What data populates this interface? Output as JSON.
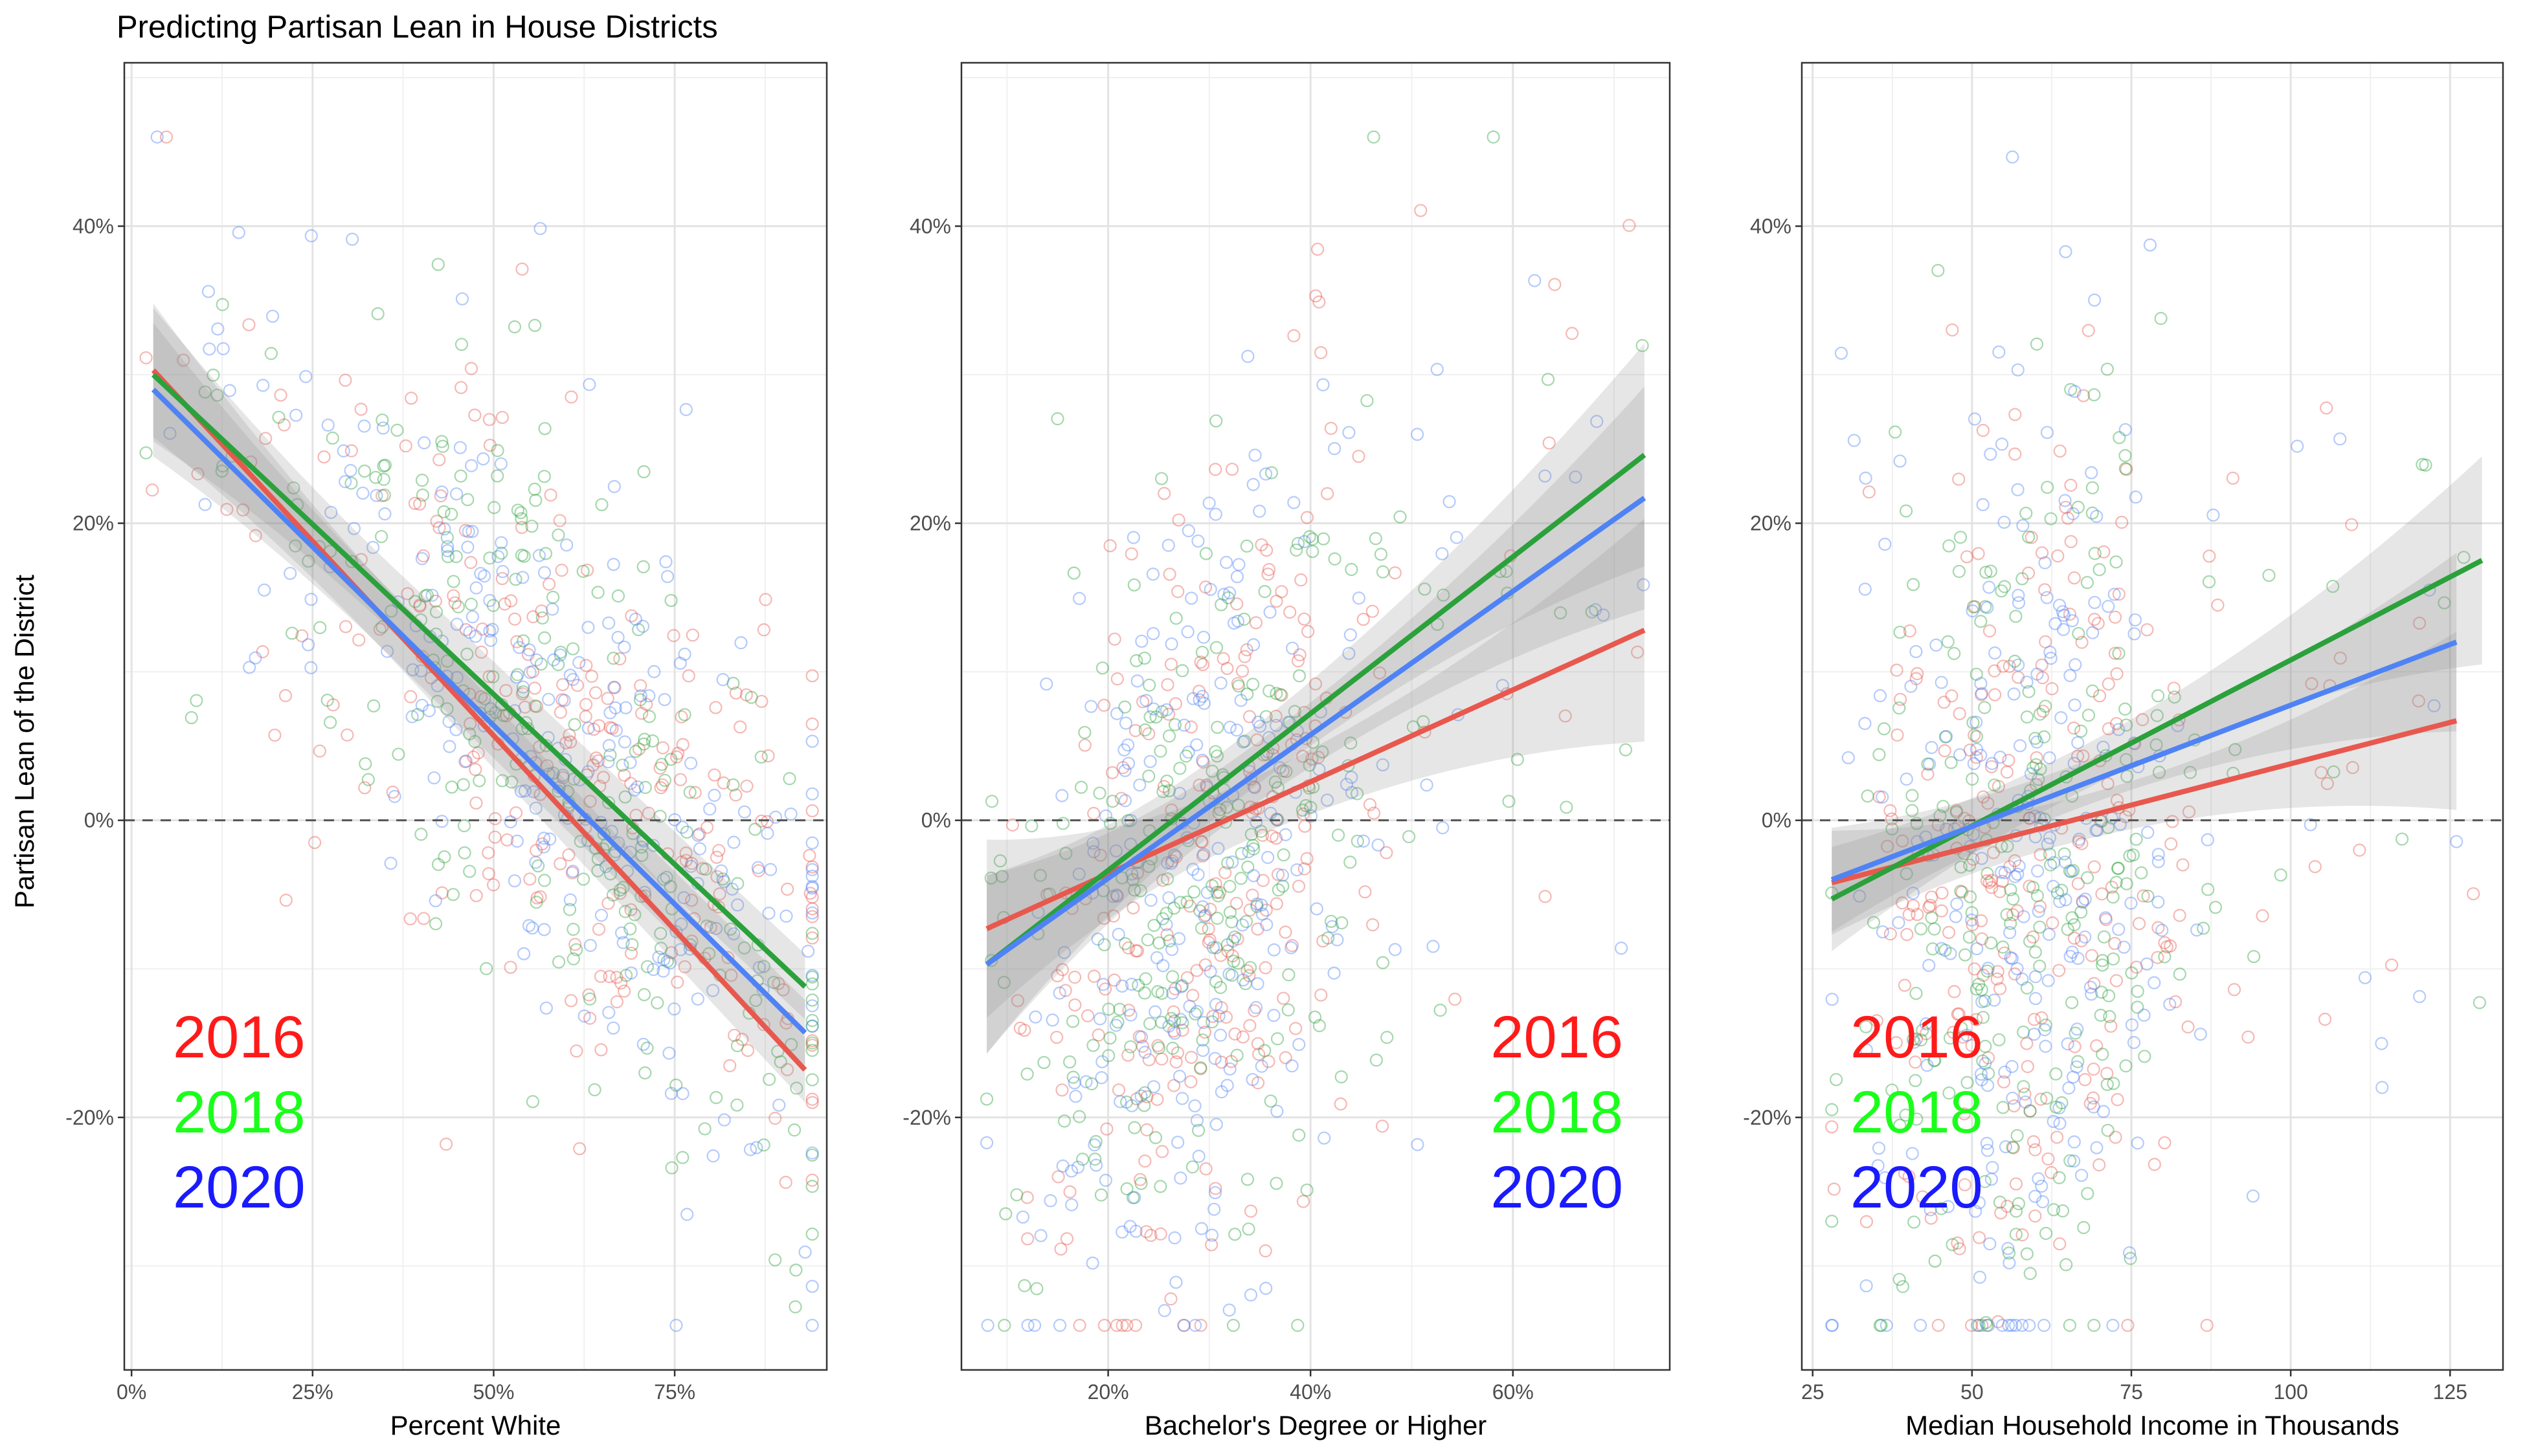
{
  "figure": {
    "title": "Predicting Partisan Lean in House Districts",
    "ylabel": "Partisan Lean of the District",
    "years": [
      "2016",
      "2018",
      "2020"
    ],
    "colors": {
      "2016": "#e8584e",
      "2018": "#2ba13b",
      "2020": "#4f83f5"
    },
    "year_text_colors": {
      "2016": "#ff1a1a",
      "2018": "#1aff1a",
      "2020": "#1a1aff"
    }
  },
  "chart_data": [
    {
      "type": "scatter",
      "xlabel": "Percent White",
      "ylabel": "Partisan Lean of the District",
      "xlim": [
        -0.01,
        0.96
      ],
      "ylim": [
        -0.37,
        0.51
      ],
      "xticks": [
        0,
        0.25,
        0.5,
        0.75
      ],
      "xtick_labels": [
        "0%",
        "25%",
        "50%",
        "75%"
      ],
      "yticks": [
        -0.2,
        0,
        0.2,
        0.4
      ],
      "ytick_labels": [
        "-20%",
        "0%",
        "20%",
        "40%"
      ],
      "legend": "bottom-left",
      "point_cloud": {
        "x_center": 0.62,
        "x_spread": 0.2,
        "x_range": [
          0.02,
          0.94
        ],
        "slope_ref": -0.46,
        "intercept_ref": 0.31,
        "noise": 0.1,
        "n": 260
      },
      "series": [
        {
          "name": "2016",
          "fit_x": [
            0.03,
            0.93
          ],
          "fit_y": [
            0.303,
            -0.168
          ],
          "ci_halfwidth": [
            0.045,
            0.022,
            0.022
          ]
        },
        {
          "name": "2018",
          "fit_x": [
            0.03,
            0.93
          ],
          "fit_y": [
            0.3,
            -0.112
          ],
          "ci_halfwidth": [
            0.045,
            0.022,
            0.022
          ]
        },
        {
          "name": "2020",
          "fit_x": [
            0.03,
            0.93
          ],
          "fit_y": [
            0.29,
            -0.143
          ],
          "ci_halfwidth": [
            0.045,
            0.022,
            0.022
          ]
        }
      ]
    },
    {
      "type": "scatter",
      "xlabel": "Bachelor's Degree or Higher",
      "ylabel": "",
      "xlim": [
        0.055,
        0.755
      ],
      "ylim": [
        -0.37,
        0.51
      ],
      "xticks": [
        0.2,
        0.4,
        0.6
      ],
      "xtick_labels": [
        "20%",
        "40%",
        "60%"
      ],
      "yticks": [
        -0.2,
        0,
        0.2,
        0.4
      ],
      "ytick_labels": [
        "-20%",
        "0%",
        "20%",
        "40%"
      ],
      "legend": "bottom-right",
      "point_cloud": {
        "x_center": 0.3,
        "x_spread": 0.09,
        "x_range": [
          0.08,
          0.73
        ],
        "slope_ref": 0.55,
        "intercept_ref": -0.15,
        "noise": 0.13,
        "n": 260
      },
      "series": [
        {
          "name": "2016",
          "fit_x": [
            0.08,
            0.73
          ],
          "fit_y": [
            -0.073,
            0.128
          ],
          "ci_halfwidth": [
            0.06,
            0.02,
            0.075
          ]
        },
        {
          "name": "2018",
          "fit_x": [
            0.08,
            0.73
          ],
          "fit_y": [
            -0.097,
            0.246
          ],
          "ci_halfwidth": [
            0.06,
            0.02,
            0.075
          ]
        },
        {
          "name": "2020",
          "fit_x": [
            0.08,
            0.73
          ],
          "fit_y": [
            -0.097,
            0.217
          ],
          "ci_halfwidth": [
            0.06,
            0.02,
            0.075
          ]
        }
      ]
    },
    {
      "type": "scatter",
      "xlabel": "Median Household Income in Thousands",
      "ylabel": "",
      "xlim": [
        23.3,
        133.3
      ],
      "ylim": [
        -0.37,
        0.51
      ],
      "xticks": [
        25,
        50,
        75,
        100,
        125
      ],
      "xtick_labels": [
        "25",
        "50",
        "75",
        "100",
        "125"
      ],
      "yticks": [
        -0.2,
        0,
        0.2,
        0.4
      ],
      "ytick_labels": [
        "-20%",
        "0%",
        "20%",
        "40%"
      ],
      "legend": "bottom-left",
      "point_cloud": {
        "x_center": 58,
        "x_spread": 13,
        "x_range": [
          28,
          130
        ],
        "slope_ref": 0.002,
        "intercept_ref": -0.1,
        "noise": 0.15,
        "n": 260
      },
      "series": [
        {
          "name": "2016",
          "fit_x": [
            28,
            126
          ],
          "fit_y": [
            -0.042,
            0.067
          ],
          "ci_halfwidth": [
            0.035,
            0.015,
            0.06
          ]
        },
        {
          "name": "2018",
          "fit_x": [
            28,
            130
          ],
          "fit_y": [
            -0.053,
            0.175
          ],
          "ci_halfwidth": [
            0.035,
            0.015,
            0.07
          ]
        },
        {
          "name": "2020",
          "fit_x": [
            28,
            126
          ],
          "fit_y": [
            -0.04,
            0.12
          ],
          "ci_halfwidth": [
            0.035,
            0.015,
            0.06
          ]
        }
      ]
    }
  ]
}
